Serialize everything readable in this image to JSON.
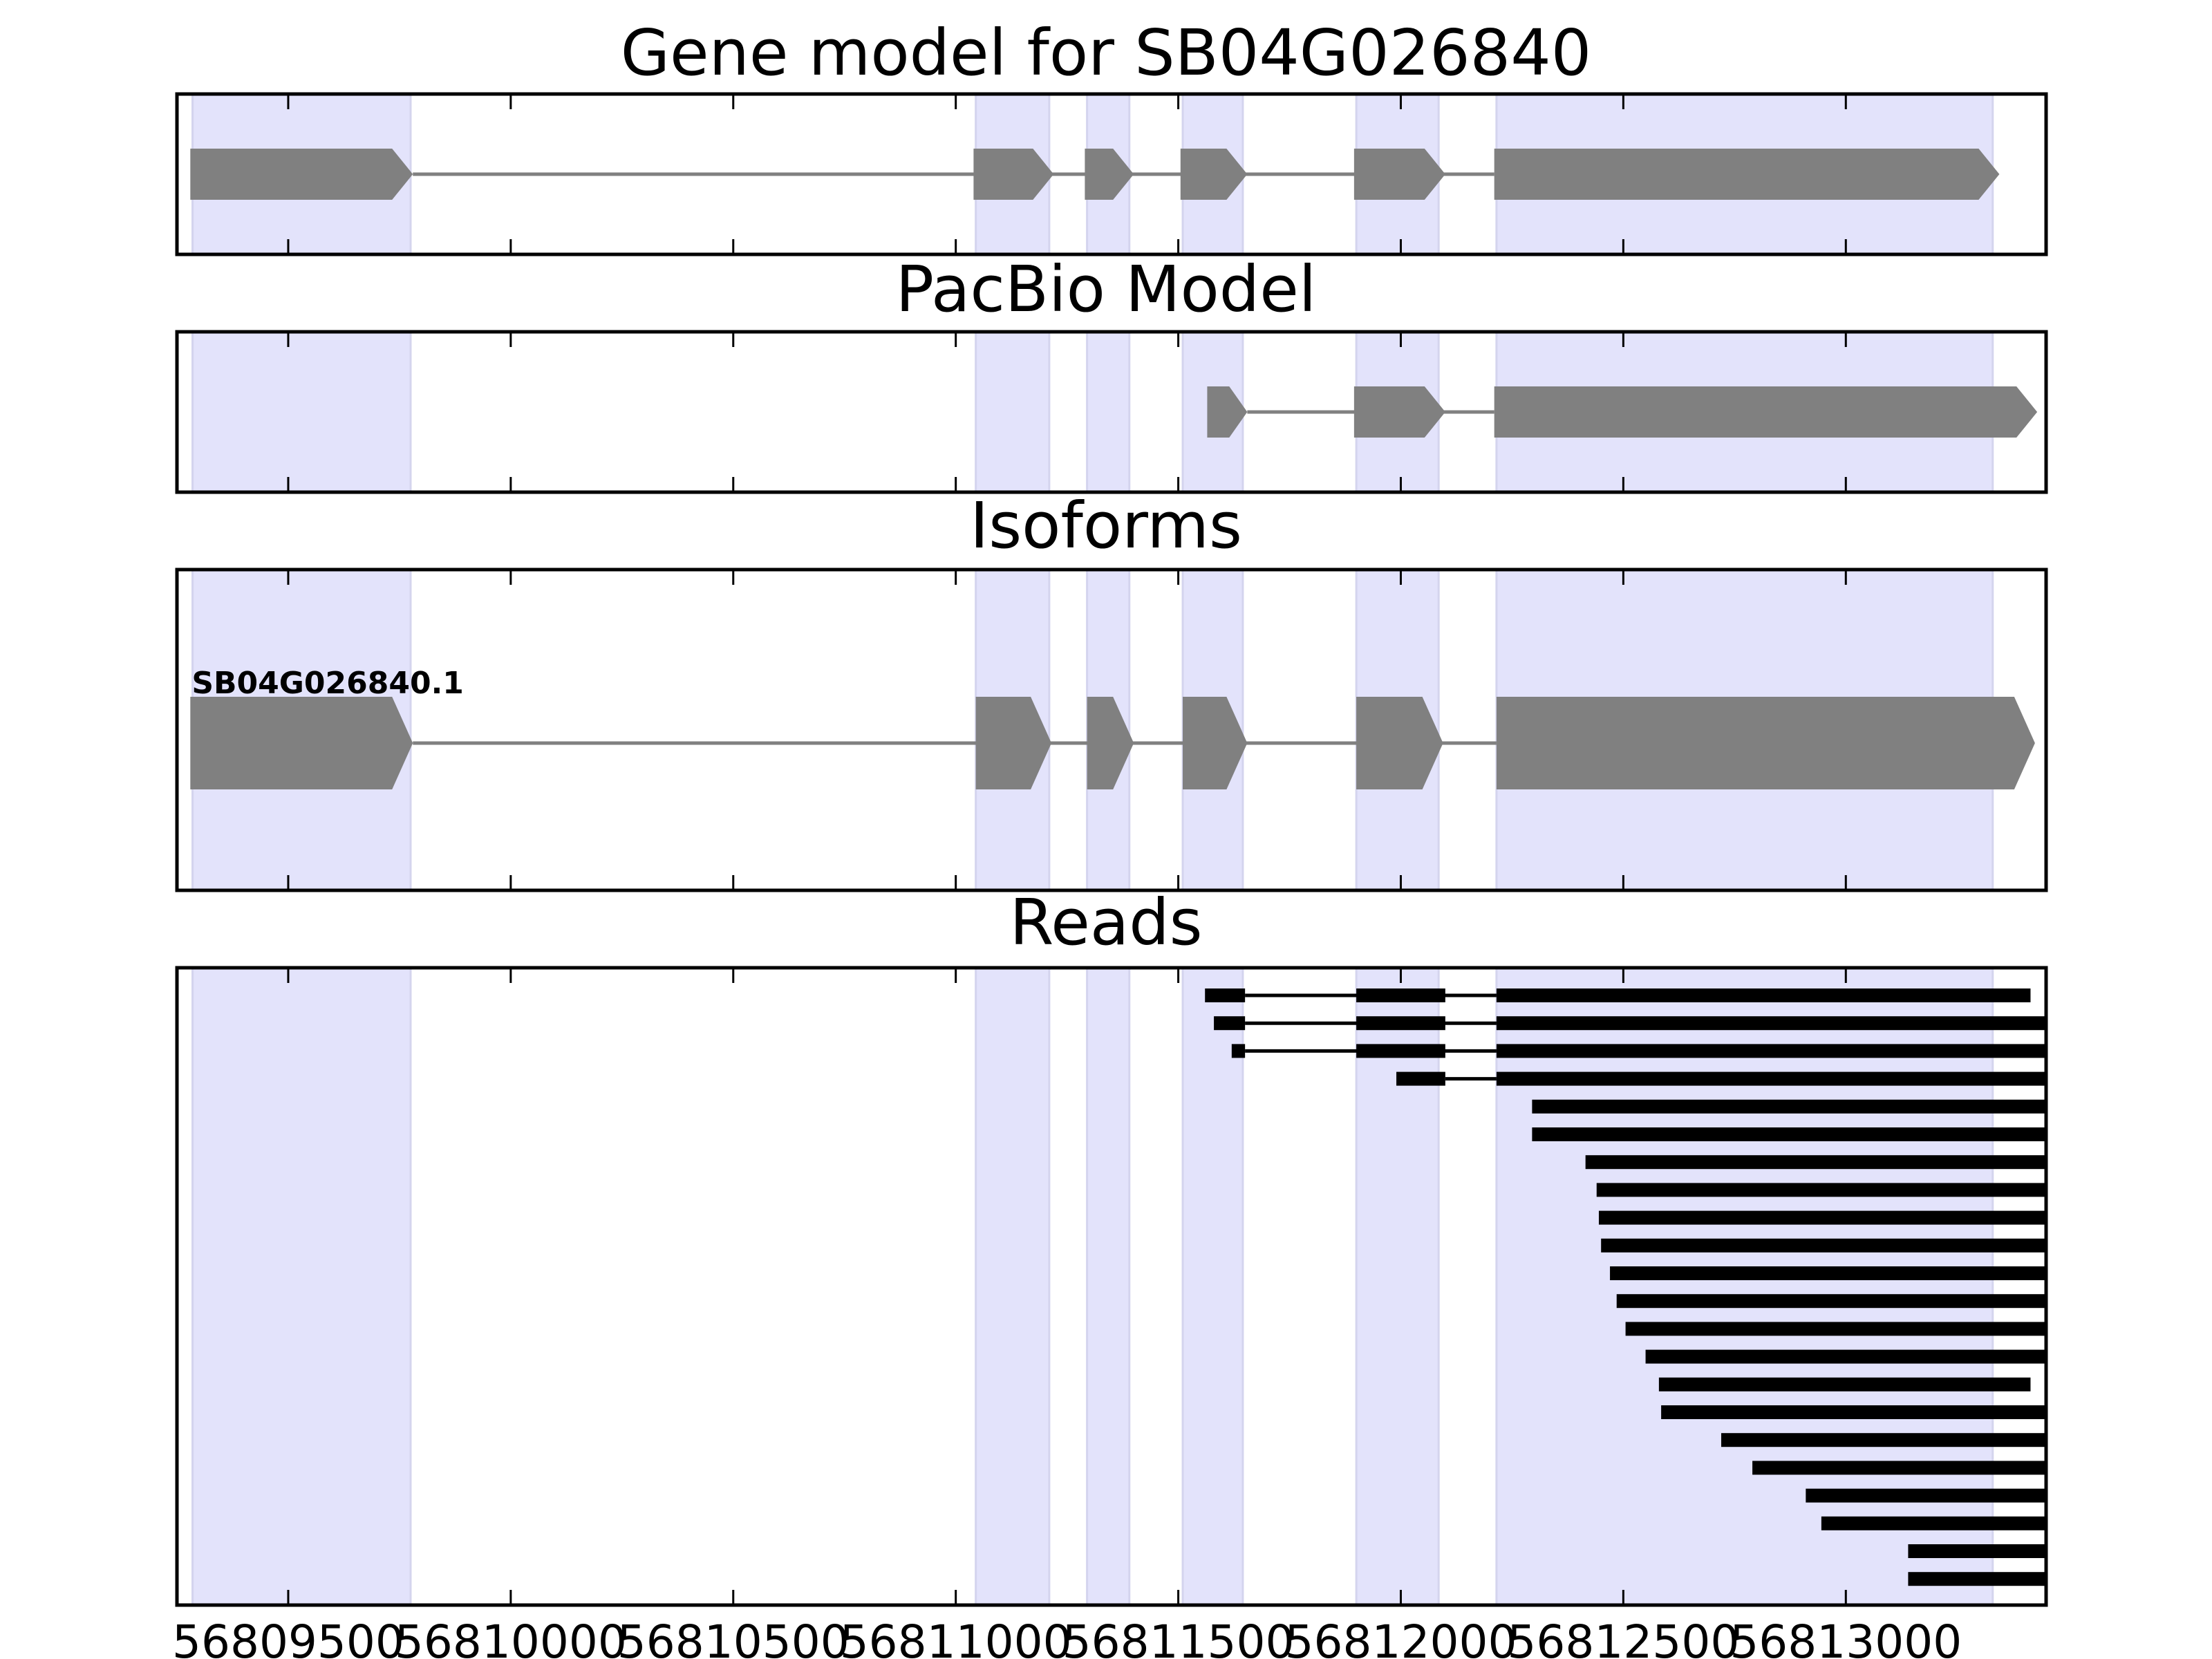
{
  "chart_data": {
    "type": "gene-model-track",
    "title": "Gene model for SB04G026840",
    "xlim": [
      56809250,
      56813450
    ],
    "x_ticks": [
      56809500,
      56810000,
      56810500,
      56811000,
      56811500,
      56812000,
      56812500,
      56813000
    ],
    "x_tick_labels": [
      "56809500",
      "56810000",
      "56810500",
      "56811000",
      "56811500",
      "56812000",
      "56812500",
      "56813000"
    ],
    "highlight_color": "#e3e3fb",
    "feature_color": "#808080",
    "read_color": "#000000",
    "exon_highlights": [
      [
        56809285,
        56809775
      ],
      [
        56811045,
        56811210
      ],
      [
        56811295,
        56811390
      ],
      [
        56811510,
        56811645
      ],
      [
        56811900,
        56812085
      ],
      [
        56812215,
        56813330
      ]
    ],
    "panels": {
      "gene_model": {
        "title": "Gene model for SB04G026840",
        "strand": "+",
        "exons": [
          [
            56809280,
            56809780
          ],
          [
            56811040,
            56811220
          ],
          [
            56811290,
            56811400
          ],
          [
            56811505,
            56811655
          ],
          [
            56811895,
            56812100
          ],
          [
            56812210,
            56813345
          ]
        ]
      },
      "pacbio_model": {
        "title": "PacBio Model",
        "strand": "+",
        "exons": [
          [
            56811565,
            56811655
          ],
          [
            56811895,
            56812100
          ],
          [
            56812210,
            56813430
          ]
        ]
      },
      "isoforms": {
        "title": "Isoforms",
        "items": [
          {
            "label": "SB04G026840.1",
            "strand": "+",
            "exons": [
              [
                56809280,
                56809780
              ],
              [
                56811045,
                56811215
              ],
              [
                56811295,
                56811400
              ],
              [
                56811510,
                56811655
              ],
              [
                56811900,
                56812095
              ],
              [
                56812215,
                56813425
              ]
            ]
          }
        ]
      },
      "reads": {
        "title": "Reads",
        "rows": [
          [
            [
              56811560,
              56811650
            ],
            [
              56811900,
              56812100
            ],
            [
              56812215,
              56813415
            ]
          ],
          [
            [
              56811580,
              56811650
            ],
            [
              56811900,
              56812100
            ],
            [
              56812215,
              56813450
            ]
          ],
          [
            [
              56811620,
              56811650
            ],
            [
              56811900,
              56812100
            ],
            [
              56812215,
              56813450
            ]
          ],
          [
            [
              56811990,
              56812100
            ],
            [
              56812215,
              56813450
            ]
          ],
          [
            [
              56812295,
              56813450
            ]
          ],
          [
            [
              56812295,
              56813450
            ]
          ],
          [
            [
              56812415,
              56813450
            ]
          ],
          [
            [
              56812440,
              56813450
            ]
          ],
          [
            [
              56812445,
              56813450
            ]
          ],
          [
            [
              56812450,
              56813450
            ]
          ],
          [
            [
              56812470,
              56813450
            ]
          ],
          [
            [
              56812485,
              56813450
            ]
          ],
          [
            [
              56812505,
              56813450
            ]
          ],
          [
            [
              56812550,
              56813450
            ]
          ],
          [
            [
              56812580,
              56813415
            ]
          ],
          [
            [
              56812585,
              56813450
            ]
          ],
          [
            [
              56812720,
              56813450
            ]
          ],
          [
            [
              56812790,
              56813450
            ]
          ],
          [
            [
              56812910,
              56813450
            ]
          ],
          [
            [
              56812945,
              56813450
            ]
          ],
          [
            [
              56813140,
              56813450
            ]
          ],
          [
            [
              56813140,
              56813450
            ]
          ]
        ]
      }
    }
  }
}
